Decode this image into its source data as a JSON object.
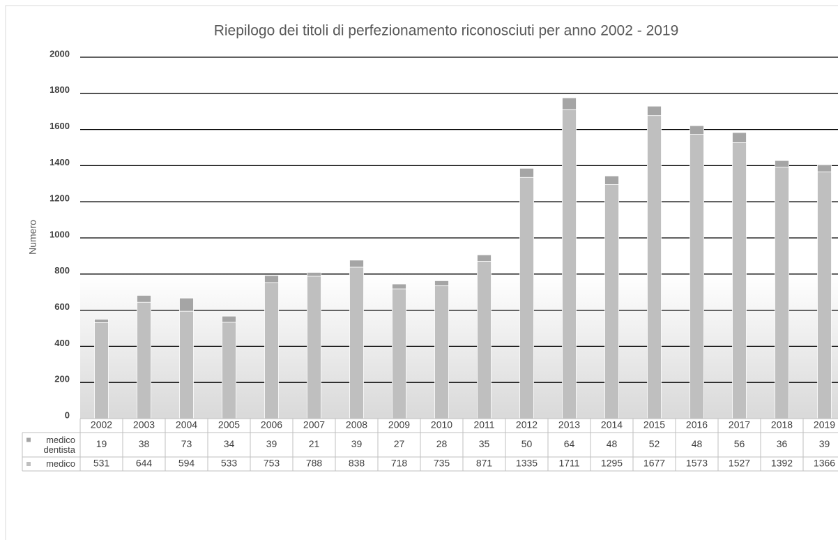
{
  "chart_data": {
    "type": "bar",
    "stacked": true,
    "title": "Riepilogo dei titoli di perfezionamento riconosciuti per anno 2002 - 2019",
    "y_label": "Numero",
    "categories": [
      "2002",
      "2003",
      "2004",
      "2005",
      "2006",
      "2007",
      "2008",
      "2009",
      "2010",
      "2011",
      "2012",
      "2013",
      "2014",
      "2015",
      "2016",
      "2017",
      "2018",
      "2019"
    ],
    "series": [
      {
        "name": "medico",
        "color": "#bfbfbf",
        "values": [
          531,
          644,
          594,
          533,
          753,
          788,
          838,
          718,
          735,
          871,
          1335,
          1711,
          1295,
          1677,
          1573,
          1527,
          1392,
          1366
        ]
      },
      {
        "name": "medico dentista",
        "color": "#a5a5a5",
        "values": [
          19,
          38,
          73,
          34,
          39,
          21,
          39,
          27,
          28,
          35,
          50,
          64,
          48,
          52,
          48,
          56,
          36,
          39
        ]
      }
    ],
    "ylim": [
      0,
      2000
    ],
    "yticks": [
      0,
      200,
      400,
      600,
      800,
      1000,
      1200,
      1400,
      1600,
      1800,
      2000
    ],
    "grid": true,
    "data_table": true
  }
}
